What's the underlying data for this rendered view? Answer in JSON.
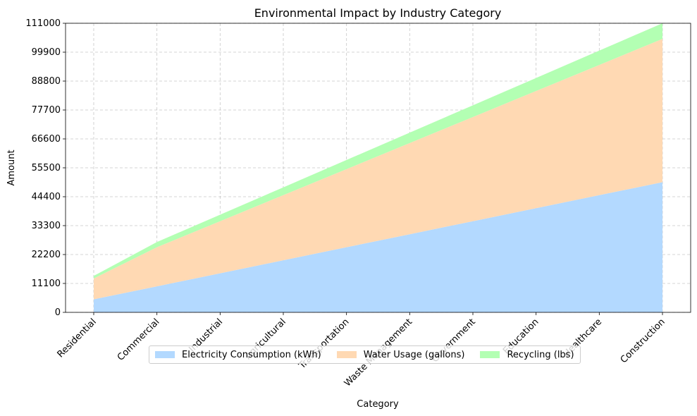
{
  "chart_data": {
    "type": "area",
    "stacked": true,
    "title": "Environmental Impact by Industry Category",
    "xlabel": "Category",
    "ylabel": "Amount",
    "categories": [
      "Residential",
      "Commercial",
      "Industrial",
      "Agricultural",
      "Transportation",
      "Waste Management",
      "Government",
      "Education",
      "Healthcare",
      "Construction"
    ],
    "series": [
      {
        "name": "Electricity Consumption (kWh)",
        "color": "#b3d9ff",
        "values": [
          5000,
          10000,
          15000,
          20000,
          25000,
          30000,
          35000,
          40000,
          45000,
          50000
        ]
      },
      {
        "name": "Water Usage (gallons)",
        "color": "#ffd9b3",
        "values": [
          8000,
          15000,
          20000,
          25000,
          30000,
          35000,
          40000,
          45000,
          50000,
          55000
        ]
      },
      {
        "name": "Recycling (lbs)",
        "color": "#b3ffb3",
        "values": [
          1000,
          2000,
          2500,
          3000,
          3500,
          4000,
          4500,
          5000,
          5500,
          6000
        ]
      }
    ],
    "ylim": [
      0,
      111000
    ],
    "yticks": [
      "0",
      "11100",
      "22200",
      "33300",
      "44400",
      "55500",
      "66600",
      "77700",
      "88800",
      "99900",
      "111000"
    ],
    "grid": true,
    "legend_position": "lower-center"
  }
}
